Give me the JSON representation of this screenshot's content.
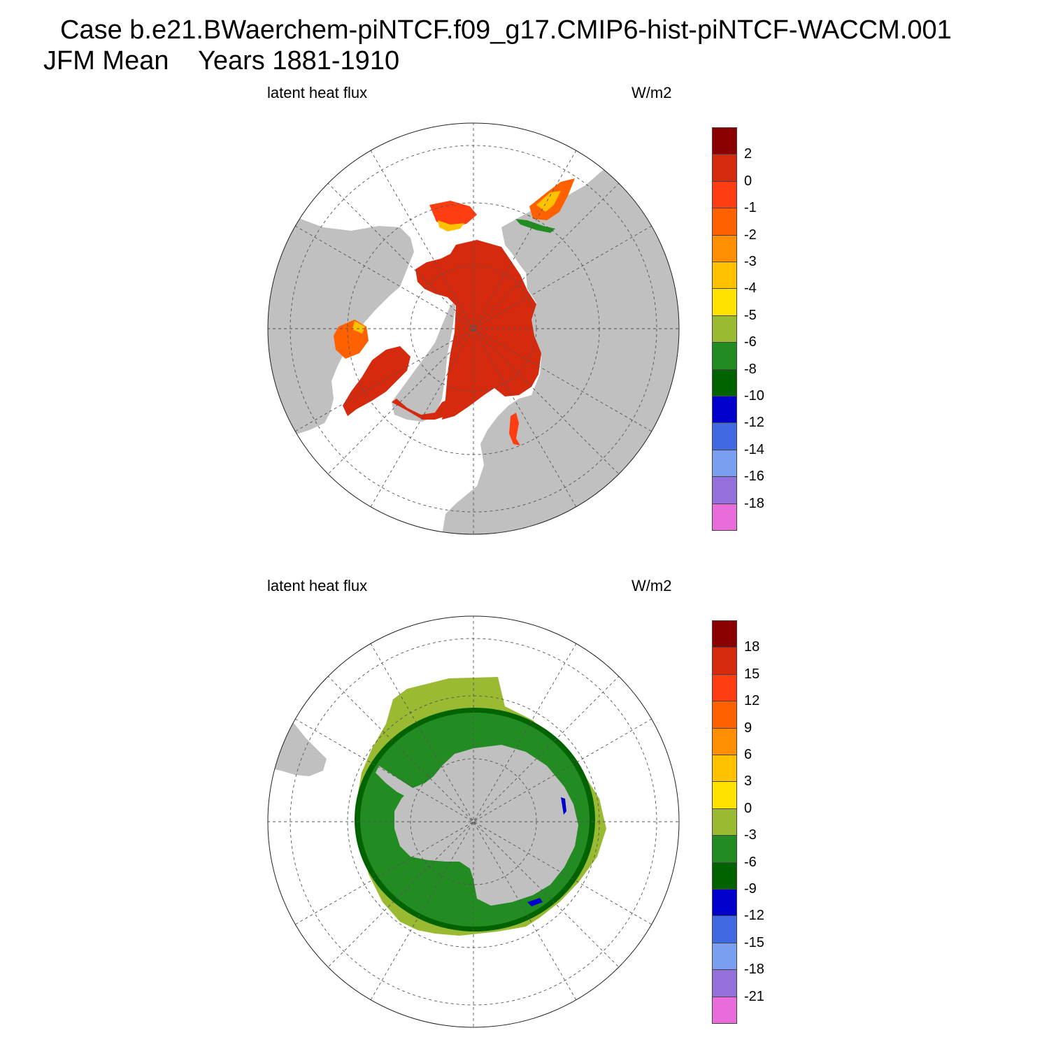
{
  "header": {
    "title_line1": "Case b.e21.BWaerchem-piNTCF.f09_g17.CMIP6-hist-piNTCF-WACCM.001",
    "title_line2": "JFM Mean    Years 1881-1910"
  },
  "panels": [
    {
      "hemisphere": "north",
      "variable": "latent heat flux",
      "units": "W/m2",
      "colorbar": {
        "colors": [
          "#8b0000",
          "#d62a0e",
          "#ff3d12",
          "#ff6100",
          "#ff8e00",
          "#ffc100",
          "#ffe200",
          "#9aba32",
          "#228b22",
          "#006300",
          "#0000cd",
          "#4169e1",
          "#7b9ff0",
          "#9370db",
          "#e86ddb"
        ],
        "labels": [
          "2",
          "0",
          "-1",
          "-2",
          "-3",
          "-4",
          "-5",
          "-6",
          "-8",
          "-10",
          "-12",
          "-14",
          "-16",
          "-18"
        ]
      }
    },
    {
      "hemisphere": "south",
      "variable": "latent heat flux",
      "units": "W/m2",
      "colorbar": {
        "colors": [
          "#8b0000",
          "#d62a0e",
          "#ff3d12",
          "#ff6100",
          "#ff8e00",
          "#ffc100",
          "#ffe200",
          "#9aba32",
          "#228b22",
          "#006300",
          "#0000cd",
          "#4169e1",
          "#7b9ff0",
          "#9370db",
          "#e86ddb"
        ],
        "labels": [
          "18",
          "15",
          "12",
          "9",
          "6",
          "3",
          "0",
          "-3",
          "-6",
          "-9",
          "-12",
          "-15",
          "-18",
          "-21"
        ]
      }
    }
  ],
  "colors": {
    "land": "#c0c0c0",
    "ocean_missing": "#ffffff",
    "arctic_flux": "#d62a0e",
    "antarctic_flux": "#9aba32",
    "antarctic_flux_strong": "#228b22",
    "antarctic_flux_coast": "#006300"
  }
}
